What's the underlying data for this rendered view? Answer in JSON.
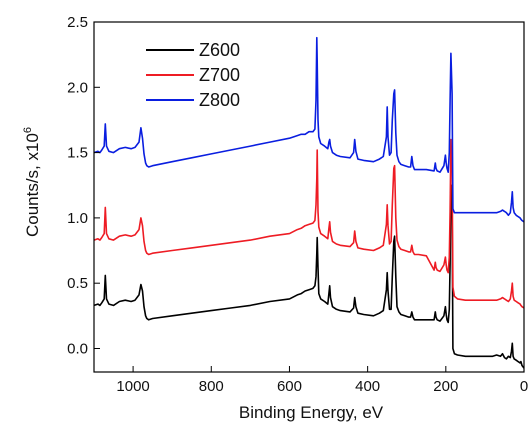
{
  "chart_data": {
    "type": "line",
    "title": "",
    "xlabel": "Binding Energy, eV",
    "ylabel_base": "Counts/s, x10",
    "ylabel_exp": "6",
    "xlim": [
      1100,
      0
    ],
    "ylim": [
      -0.18,
      2.5
    ],
    "x_ticks": [
      1000,
      800,
      600,
      400,
      200,
      0
    ],
    "y_ticks": [
      0.0,
      0.5,
      1.0,
      1.5,
      2.0,
      2.5
    ],
    "x_tick_labels": [
      "1000",
      "800",
      "600",
      "400",
      "200",
      "0"
    ],
    "y_tick_labels": [
      "0.0",
      "0.5",
      "1.0",
      "1.5",
      "2.0",
      "2.5"
    ],
    "legend_position": "top-left",
    "grid": false,
    "series": [
      {
        "name": "Z600",
        "color": "#000000",
        "x": [
          1100,
          1090,
          1085,
          1080,
          1074,
          1071,
          1068,
          1062,
          1050,
          1035,
          1020,
          1005,
          995,
          985,
          980,
          976,
          972,
          968,
          965,
          960,
          950,
          900,
          850,
          800,
          750,
          700,
          650,
          600,
          580,
          570,
          560,
          550,
          540,
          535,
          532,
          530,
          529,
          527,
          525,
          520,
          510,
          502,
          499,
          497,
          495,
          490,
          480,
          470,
          445,
          436,
          433,
          430,
          425,
          410,
          385,
          370,
          360,
          352,
          350,
          348,
          344,
          340,
          337,
          333,
          331,
          328,
          325,
          320,
          315,
          305,
          295,
          290,
          287,
          284,
          280,
          270,
          250,
          230,
          227,
          225,
          222,
          215,
          205,
          201,
          199,
          197,
          194,
          191,
          189,
          187,
          184,
          182,
          178,
          170,
          150,
          120,
          100,
          80,
          70,
          60,
          55,
          50,
          45,
          40,
          35,
          32,
          30,
          28,
          25,
          20,
          15,
          10,
          8,
          5,
          0
        ],
        "y": [
          0.33,
          0.34,
          0.33,
          0.35,
          0.38,
          0.56,
          0.38,
          0.34,
          0.33,
          0.36,
          0.37,
          0.36,
          0.37,
          0.41,
          0.49,
          0.44,
          0.32,
          0.25,
          0.23,
          0.22,
          0.23,
          0.25,
          0.27,
          0.29,
          0.31,
          0.33,
          0.36,
          0.38,
          0.41,
          0.42,
          0.44,
          0.45,
          0.46,
          0.48,
          0.55,
          0.73,
          0.85,
          0.62,
          0.42,
          0.38,
          0.36,
          0.34,
          0.42,
          0.48,
          0.39,
          0.32,
          0.3,
          0.29,
          0.28,
          0.31,
          0.39,
          0.32,
          0.27,
          0.26,
          0.25,
          0.27,
          0.29,
          0.45,
          0.58,
          0.44,
          0.3,
          0.3,
          0.55,
          0.82,
          0.86,
          0.55,
          0.32,
          0.28,
          0.26,
          0.25,
          0.24,
          0.24,
          0.28,
          0.24,
          0.22,
          0.22,
          0.22,
          0.22,
          0.28,
          0.24,
          0.22,
          0.21,
          0.25,
          0.32,
          0.26,
          0.22,
          0.2,
          0.3,
          0.65,
          1.25,
          1.1,
          0.0,
          -0.04,
          -0.05,
          -0.06,
          -0.06,
          -0.06,
          -0.06,
          -0.05,
          -0.06,
          -0.04,
          -0.07,
          -0.08,
          -0.06,
          -0.07,
          -0.02,
          0.04,
          -0.06,
          -0.08,
          -0.09,
          -0.1,
          -0.11,
          -0.1,
          -0.13,
          -0.15
        ]
      },
      {
        "name": "Z700",
        "color": "#ee1c24",
        "x": [
          1100,
          1090,
          1085,
          1080,
          1074,
          1071,
          1068,
          1062,
          1050,
          1035,
          1020,
          1005,
          995,
          985,
          980,
          976,
          972,
          968,
          965,
          960,
          950,
          900,
          850,
          800,
          750,
          700,
          650,
          600,
          580,
          570,
          560,
          550,
          540,
          535,
          532,
          530,
          529,
          527,
          525,
          520,
          510,
          502,
          499,
          497,
          495,
          490,
          480,
          470,
          445,
          436,
          433,
          430,
          425,
          410,
          385,
          370,
          360,
          352,
          350,
          348,
          344,
          340,
          337,
          333,
          331,
          328,
          325,
          320,
          315,
          305,
          295,
          290,
          287,
          284,
          280,
          270,
          250,
          230,
          227,
          225,
          222,
          215,
          205,
          201,
          199,
          197,
          194,
          191,
          189,
          187,
          184,
          182,
          178,
          170,
          150,
          120,
          100,
          80,
          70,
          60,
          55,
          50,
          45,
          40,
          35,
          32,
          30,
          28,
          25,
          20,
          15,
          10,
          8,
          5,
          0
        ],
        "y": [
          0.83,
          0.84,
          0.83,
          0.85,
          0.88,
          1.08,
          0.88,
          0.84,
          0.83,
          0.86,
          0.87,
          0.86,
          0.87,
          0.91,
          1.0,
          0.94,
          0.82,
          0.75,
          0.73,
          0.72,
          0.73,
          0.75,
          0.77,
          0.79,
          0.81,
          0.83,
          0.86,
          0.88,
          0.91,
          0.92,
          0.94,
          0.95,
          0.96,
          0.98,
          1.1,
          1.3,
          1.52,
          1.05,
          0.93,
          0.88,
          0.86,
          0.84,
          0.92,
          0.97,
          0.89,
          0.82,
          0.8,
          0.79,
          0.78,
          0.81,
          0.9,
          0.82,
          0.77,
          0.76,
          0.75,
          0.77,
          0.79,
          0.95,
          1.1,
          0.94,
          0.8,
          0.82,
          1.1,
          1.38,
          1.4,
          1.0,
          0.83,
          0.78,
          0.76,
          0.75,
          0.74,
          0.74,
          0.79,
          0.74,
          0.72,
          0.72,
          0.71,
          0.6,
          0.66,
          0.62,
          0.6,
          0.59,
          0.64,
          0.7,
          0.64,
          0.6,
          0.58,
          0.7,
          1.05,
          1.6,
          1.4,
          0.47,
          0.4,
          0.38,
          0.37,
          0.37,
          0.37,
          0.37,
          0.37,
          0.38,
          0.39,
          0.38,
          0.37,
          0.36,
          0.38,
          0.44,
          0.5,
          0.4,
          0.37,
          0.36,
          0.35,
          0.34,
          0.33,
          0.32,
          0.31
        ]
      },
      {
        "name": "Z800",
        "color": "#0a1ee0",
        "x": [
          1100,
          1090,
          1085,
          1080,
          1074,
          1071,
          1068,
          1062,
          1050,
          1035,
          1020,
          1005,
          995,
          985,
          980,
          976,
          972,
          968,
          965,
          960,
          950,
          900,
          850,
          800,
          750,
          700,
          650,
          600,
          580,
          570,
          560,
          550,
          540,
          535,
          532,
          530,
          529,
          527,
          525,
          520,
          510,
          502,
          499,
          497,
          495,
          490,
          480,
          470,
          445,
          436,
          433,
          430,
          425,
          410,
          385,
          370,
          360,
          352,
          350,
          348,
          344,
          340,
          337,
          333,
          331,
          328,
          325,
          320,
          315,
          305,
          295,
          290,
          287,
          284,
          280,
          270,
          250,
          230,
          227,
          225,
          222,
          215,
          205,
          201,
          199,
          197,
          194,
          191,
          189,
          187,
          184,
          182,
          178,
          170,
          150,
          120,
          100,
          80,
          70,
          60,
          55,
          50,
          45,
          40,
          35,
          32,
          30,
          28,
          25,
          20,
          15,
          10,
          8,
          5,
          0
        ],
        "y": [
          1.5,
          1.51,
          1.5,
          1.52,
          1.55,
          1.72,
          1.55,
          1.51,
          1.5,
          1.53,
          1.54,
          1.53,
          1.54,
          1.58,
          1.69,
          1.61,
          1.49,
          1.42,
          1.4,
          1.39,
          1.4,
          1.43,
          1.46,
          1.49,
          1.52,
          1.55,
          1.58,
          1.61,
          1.63,
          1.64,
          1.64,
          1.66,
          1.66,
          1.68,
          1.9,
          2.38,
          2.2,
          1.75,
          1.62,
          1.57,
          1.55,
          1.53,
          1.58,
          1.6,
          1.55,
          1.5,
          1.48,
          1.47,
          1.46,
          1.5,
          1.6,
          1.51,
          1.45,
          1.44,
          1.43,
          1.45,
          1.47,
          1.62,
          1.85,
          1.62,
          1.48,
          1.5,
          1.75,
          1.95,
          1.98,
          1.65,
          1.48,
          1.43,
          1.41,
          1.4,
          1.39,
          1.39,
          1.47,
          1.4,
          1.37,
          1.37,
          1.37,
          1.36,
          1.42,
          1.38,
          1.36,
          1.35,
          1.4,
          1.48,
          1.42,
          1.38,
          1.35,
          1.5,
          1.9,
          2.26,
          1.95,
          1.07,
          1.04,
          1.04,
          1.04,
          1.04,
          1.04,
          1.04,
          1.04,
          1.05,
          1.06,
          1.05,
          1.04,
          1.02,
          1.04,
          1.12,
          1.2,
          1.08,
          1.04,
          1.02,
          1.01,
          1.0,
          0.99,
          0.98,
          0.97
        ]
      }
    ]
  }
}
